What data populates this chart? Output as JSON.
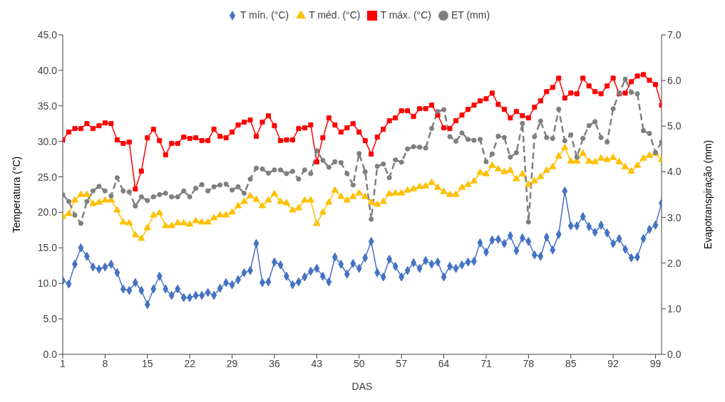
{
  "chart_data": {
    "type": "line",
    "xlabel": "DAS",
    "ylabel": "Temperatura (°C)",
    "y2label": "Evapotranspiração (mm)",
    "x": [
      1,
      2,
      3,
      4,
      5,
      6,
      7,
      8,
      9,
      10,
      11,
      12,
      13,
      14,
      15,
      16,
      17,
      18,
      19,
      20,
      21,
      22,
      23,
      24,
      25,
      26,
      27,
      28,
      29,
      30,
      31,
      32,
      33,
      34,
      35,
      36,
      37,
      38,
      39,
      40,
      41,
      42,
      43,
      44,
      45,
      46,
      47,
      48,
      49,
      50,
      51,
      52,
      53,
      54,
      55,
      56,
      57,
      58,
      59,
      60,
      61,
      62,
      63,
      64,
      65,
      66,
      67,
      68,
      69,
      70,
      71,
      72,
      73,
      74,
      75,
      76,
      77,
      78,
      79,
      80,
      81,
      82,
      83,
      84,
      85,
      86,
      87,
      88,
      89,
      90,
      91,
      92,
      93,
      94,
      95,
      96,
      97,
      98,
      99,
      100
    ],
    "xlim": [
      1,
      100
    ],
    "xticks": [
      1,
      8,
      15,
      22,
      29,
      36,
      43,
      50,
      57,
      64,
      71,
      78,
      85,
      92,
      99
    ],
    "ylim": [
      0,
      45
    ],
    "yticks": [
      {
        "value": 0,
        "label": "0.0"
      },
      {
        "value": 5,
        "label": "5.0"
      },
      {
        "value": 10,
        "label": "10.0"
      },
      {
        "value": 15,
        "label": "15.0"
      },
      {
        "value": 20,
        "label": "20.0"
      },
      {
        "value": 25,
        "label": "25.0"
      },
      {
        "value": 30,
        "label": "30.0"
      },
      {
        "value": 35,
        "label": "35.0"
      },
      {
        "value": 40,
        "label": "40.0"
      },
      {
        "value": 45,
        "label": "45.0"
      }
    ],
    "y2lim": [
      0,
      7
    ],
    "y2ticks": [
      {
        "value": 0,
        "label": "0.0"
      },
      {
        "value": 1,
        "label": "1.0"
      },
      {
        "value": 2,
        "label": "2.0"
      },
      {
        "value": 3,
        "label": "3.0"
      },
      {
        "value": 4,
        "label": "4.0"
      },
      {
        "value": 5,
        "label": "5.0"
      },
      {
        "value": 6,
        "label": "6.0"
      },
      {
        "value": 7,
        "label": "7.0"
      }
    ],
    "grid": false,
    "legend": "top",
    "series": [
      {
        "name": "T mín. (°C)",
        "color": "#4472c4",
        "marker": "diamond",
        "line_style": "solid",
        "values": [
          10.4,
          9.9,
          12.7,
          15.0,
          13.8,
          12.3,
          12.0,
          12.3,
          12.7,
          11.5,
          9.2,
          9.0,
          10.1,
          9.0,
          7.0,
          9.2,
          11.0,
          9.2,
          8.3,
          9.2,
          8.0,
          8.0,
          8.3,
          8.3,
          8.7,
          8.3,
          9.3,
          10.1,
          9.8,
          10.5,
          11.5,
          11.8,
          15.6,
          10.1,
          10.2,
          13.0,
          12.6,
          11.0,
          9.8,
          10.2,
          10.9,
          11.7,
          12.1,
          11.0,
          10.2,
          13.7,
          12.7,
          11.3,
          12.8,
          12.1,
          13.6,
          15.9,
          11.5,
          10.9,
          13.4,
          12.4,
          10.9,
          11.8,
          12.9,
          12.1,
          13.2,
          12.7,
          13.0,
          10.9,
          12.4,
          12.1,
          12.6,
          13.0,
          13.1,
          15.7,
          14.4,
          16.1,
          16.2,
          15.6,
          16.7,
          14.6,
          16.4,
          15.9,
          14.0,
          13.8,
          16.5,
          14.7,
          16.9,
          23.0,
          18.1,
          18.1,
          19.4,
          18.0,
          17.2,
          18.2,
          17.1,
          15.6,
          16.3,
          14.8,
          13.6,
          13.7,
          16.3,
          17.6,
          18.2,
          21.3
        ]
      },
      {
        "name": "T méd. (°C)",
        "color": "#ffc000",
        "marker": "triangle",
        "line_style": "solid",
        "values": [
          19.4,
          19.8,
          21.7,
          22.5,
          22.5,
          21.2,
          21.4,
          21.7,
          21.7,
          20.3,
          18.6,
          18.5,
          16.8,
          16.3,
          17.8,
          19.6,
          19.9,
          18.1,
          18.1,
          18.5,
          18.5,
          18.3,
          18.8,
          18.6,
          18.6,
          19.2,
          19.6,
          19.6,
          20.0,
          20.9,
          21.5,
          22.3,
          21.8,
          20.9,
          21.7,
          22.6,
          21.5,
          21.3,
          20.3,
          20.6,
          21.7,
          21.7,
          18.4,
          20.0,
          21.4,
          23.1,
          22.2,
          21.7,
          22.2,
          22.7,
          22.2,
          21.4,
          21.1,
          21.5,
          22.6,
          22.7,
          22.7,
          23.1,
          23.3,
          23.6,
          23.7,
          24.2,
          23.5,
          22.9,
          22.5,
          22.5,
          23.5,
          23.9,
          24.4,
          25.6,
          25.4,
          26.6,
          26.1,
          25.7,
          25.9,
          24.7,
          25.4,
          23.9,
          24.4,
          25.0,
          25.9,
          26.4,
          27.9,
          29.1,
          27.2,
          27.2,
          28.3,
          27.2,
          27.1,
          27.6,
          27.4,
          27.7,
          27.1,
          26.4,
          25.8,
          26.6,
          27.6,
          28.0,
          28.3,
          27.4
        ]
      },
      {
        "name": "T máx. (°C)",
        "color": "#ff0000",
        "marker": "square",
        "line_style": "solid",
        "values": [
          30.2,
          31.3,
          31.8,
          31.8,
          32.5,
          31.8,
          32.2,
          32.6,
          32.5,
          30.2,
          29.7,
          29.9,
          23.3,
          25.8,
          30.5,
          31.7,
          30.1,
          28.1,
          29.7,
          29.7,
          30.6,
          30.4,
          30.5,
          30.1,
          30.1,
          31.7,
          30.7,
          30.5,
          31.3,
          32.3,
          32.7,
          33.0,
          30.7,
          32.7,
          33.6,
          32.2,
          30.1,
          30.2,
          30.2,
          31.8,
          31.9,
          32.3,
          27.1,
          30.5,
          33.3,
          32.3,
          31.3,
          31.9,
          32.5,
          31.3,
          30.1,
          28.2,
          30.6,
          31.7,
          32.9,
          33.3,
          34.3,
          34.3,
          33.5,
          34.6,
          34.6,
          35.1,
          33.7,
          31.9,
          31.8,
          32.9,
          33.7,
          34.5,
          35.1,
          35.7,
          36.0,
          36.8,
          35.2,
          34.5,
          33.3,
          34.2,
          33.6,
          33.3,
          34.8,
          35.7,
          37.0,
          37.6,
          38.9,
          36.1,
          36.8,
          36.7,
          38.9,
          37.8,
          37.0,
          36.7,
          37.8,
          38.9,
          36.7,
          36.8,
          38.4,
          39.2,
          39.4,
          38.6,
          38.0,
          35.1
        ]
      },
      {
        "name": "ET (mm)",
        "color": "#7f7f7f",
        "marker": "circle",
        "line_style": "dashed",
        "axis": "y2",
        "values": [
          3.5,
          3.35,
          3.05,
          2.87,
          3.35,
          3.58,
          3.68,
          3.58,
          3.47,
          3.87,
          3.58,
          3.56,
          3.25,
          3.45,
          3.37,
          3.45,
          3.5,
          3.53,
          3.45,
          3.45,
          3.58,
          3.45,
          3.64,
          3.72,
          3.58,
          3.67,
          3.71,
          3.73,
          3.6,
          3.67,
          3.53,
          3.84,
          4.08,
          4.06,
          3.97,
          4.04,
          4.04,
          3.96,
          4.01,
          3.84,
          4.04,
          3.96,
          4.46,
          4.25,
          4.1,
          4.22,
          4.2,
          3.96,
          3.71,
          4.4,
          4.0,
          2.96,
          4.12,
          4.17,
          3.87,
          4.26,
          4.21,
          4.5,
          4.55,
          4.54,
          4.52,
          4.95,
          5.32,
          5.36,
          4.77,
          4.67,
          4.85,
          4.71,
          4.69,
          4.71,
          4.22,
          4.39,
          4.78,
          4.75,
          4.32,
          4.42,
          5.06,
          2.9,
          4.77,
          5.11,
          4.75,
          4.73,
          5.37,
          4.68,
          4.81,
          4.32,
          4.73,
          5.01,
          5.1,
          4.75,
          4.65,
          5.38,
          5.72,
          6.03,
          5.74,
          5.71,
          4.9,
          4.84,
          4.42,
          4.65
        ]
      }
    ]
  }
}
